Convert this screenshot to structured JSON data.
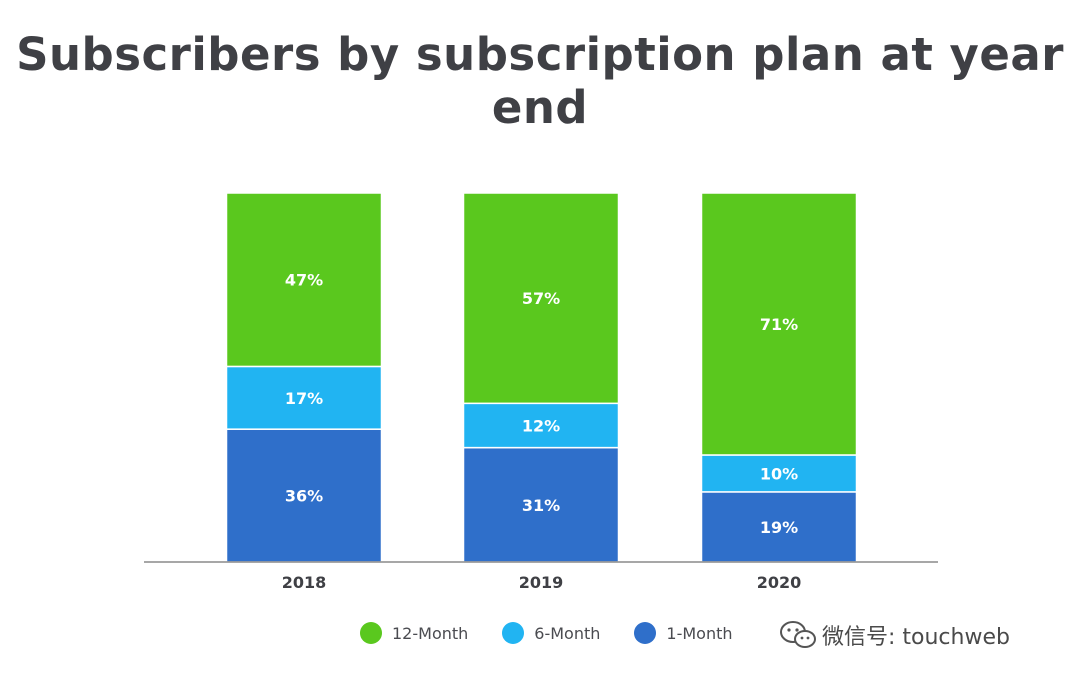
{
  "title": "Subscribers by subscription plan at year end",
  "colors": {
    "twelve_month": "#5ac81e",
    "six_month": "#21b4f2",
    "one_month": "#2f6fca",
    "axis": "#8a8a8a",
    "label_text": "#ffffff",
    "tick_text": "#3f4045"
  },
  "chart_data": {
    "type": "bar",
    "stacked": true,
    "normalized_percent": true,
    "categories": [
      "2018",
      "2019",
      "2020"
    ],
    "series": [
      {
        "name": "1-Month",
        "values": [
          36,
          31,
          19
        ],
        "labels": [
          "36%",
          "31%",
          "19%"
        ]
      },
      {
        "name": "6-Month",
        "values": [
          17,
          12,
          10
        ],
        "labels": [
          "17%",
          "12%",
          "10%"
        ]
      },
      {
        "name": "12-Month",
        "values": [
          47,
          57,
          71
        ],
        "labels": [
          "47%",
          "57%",
          "71%"
        ]
      }
    ],
    "ylim": [
      0,
      100
    ],
    "grid": false,
    "legend_position": "bottom"
  },
  "legend": [
    {
      "label": "12-Month",
      "color": "#5ac81e"
    },
    {
      "label": "6-Month",
      "color": "#21b4f2"
    },
    {
      "label": "1-Month",
      "color": "#2f6fca"
    }
  ],
  "watermark": {
    "icon": "wechat-icon",
    "text": "微信号: touchweb"
  }
}
